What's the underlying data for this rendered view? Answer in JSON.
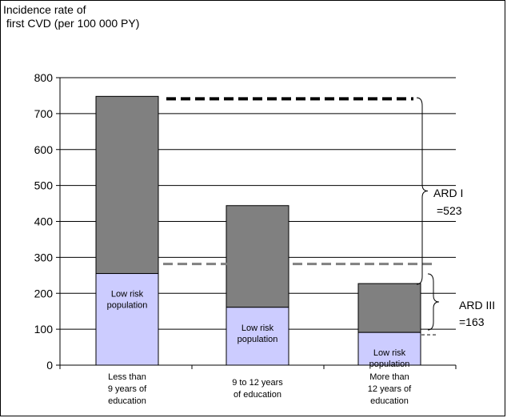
{
  "chart_data": {
    "type": "bar",
    "ylabel": "Incidence rate of\n first CVD (per 100 000 PY)",
    "ylim": [
      0,
      800
    ],
    "yticks": [
      0,
      100,
      200,
      300,
      400,
      500,
      600,
      700,
      800
    ],
    "grid": true,
    "categories": [
      [
        "Less than",
        "9 years of",
        "education"
      ],
      [
        "9 to 12 years",
        "of education"
      ],
      [
        "More than",
        "12 years of",
        "education"
      ]
    ],
    "series": [
      {
        "name": "Low risk population",
        "values": [
          255,
          161,
          91
        ]
      },
      {
        "values": [
          493,
          283,
          136
        ]
      }
    ],
    "totals": [
      748,
      444,
      227
    ],
    "segment_label": [
      "Low risk",
      "population"
    ],
    "annotations": [
      {
        "label": [
          "ARD I",
          "=523"
        ],
        "from": 225,
        "to": 748
      },
      {
        "label": [
          "ARD III",
          "=163"
        ],
        "from": 91,
        "to": 255
      }
    ],
    "colors": {
      "low_risk": "#CCCCFF",
      "upper": "#808080",
      "ref_black": "#000000",
      "ref_gray": "#808080"
    }
  }
}
